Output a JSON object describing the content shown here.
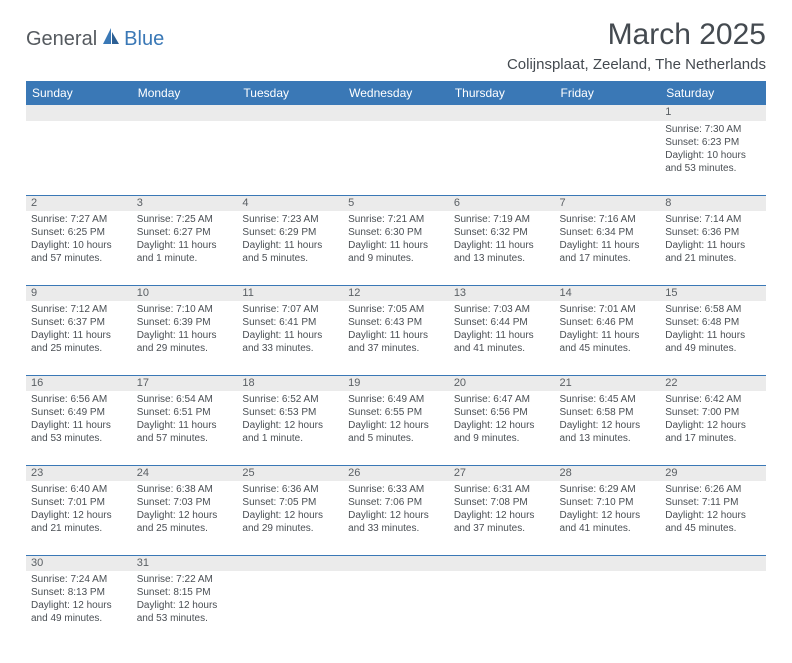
{
  "logo": {
    "general": "General",
    "blue": "Blue"
  },
  "title": "March 2025",
  "location": "Colijnsplaat, Zeeland, The Netherlands",
  "colors": {
    "header_bg": "#3a78b6",
    "header_text": "#ffffff",
    "daynum_bg": "#ebebeb",
    "text": "#4a4f54"
  },
  "weekdays": [
    "Sunday",
    "Monday",
    "Tuesday",
    "Wednesday",
    "Thursday",
    "Friday",
    "Saturday"
  ],
  "weeks": [
    [
      null,
      null,
      null,
      null,
      null,
      null,
      {
        "n": "1",
        "sr": "Sunrise: 7:30 AM",
        "ss": "Sunset: 6:23 PM",
        "dl1": "Daylight: 10 hours",
        "dl2": "and 53 minutes."
      }
    ],
    [
      {
        "n": "2",
        "sr": "Sunrise: 7:27 AM",
        "ss": "Sunset: 6:25 PM",
        "dl1": "Daylight: 10 hours",
        "dl2": "and 57 minutes."
      },
      {
        "n": "3",
        "sr": "Sunrise: 7:25 AM",
        "ss": "Sunset: 6:27 PM",
        "dl1": "Daylight: 11 hours",
        "dl2": "and 1 minute."
      },
      {
        "n": "4",
        "sr": "Sunrise: 7:23 AM",
        "ss": "Sunset: 6:29 PM",
        "dl1": "Daylight: 11 hours",
        "dl2": "and 5 minutes."
      },
      {
        "n": "5",
        "sr": "Sunrise: 7:21 AM",
        "ss": "Sunset: 6:30 PM",
        "dl1": "Daylight: 11 hours",
        "dl2": "and 9 minutes."
      },
      {
        "n": "6",
        "sr": "Sunrise: 7:19 AM",
        "ss": "Sunset: 6:32 PM",
        "dl1": "Daylight: 11 hours",
        "dl2": "and 13 minutes."
      },
      {
        "n": "7",
        "sr": "Sunrise: 7:16 AM",
        "ss": "Sunset: 6:34 PM",
        "dl1": "Daylight: 11 hours",
        "dl2": "and 17 minutes."
      },
      {
        "n": "8",
        "sr": "Sunrise: 7:14 AM",
        "ss": "Sunset: 6:36 PM",
        "dl1": "Daylight: 11 hours",
        "dl2": "and 21 minutes."
      }
    ],
    [
      {
        "n": "9",
        "sr": "Sunrise: 7:12 AM",
        "ss": "Sunset: 6:37 PM",
        "dl1": "Daylight: 11 hours",
        "dl2": "and 25 minutes."
      },
      {
        "n": "10",
        "sr": "Sunrise: 7:10 AM",
        "ss": "Sunset: 6:39 PM",
        "dl1": "Daylight: 11 hours",
        "dl2": "and 29 minutes."
      },
      {
        "n": "11",
        "sr": "Sunrise: 7:07 AM",
        "ss": "Sunset: 6:41 PM",
        "dl1": "Daylight: 11 hours",
        "dl2": "and 33 minutes."
      },
      {
        "n": "12",
        "sr": "Sunrise: 7:05 AM",
        "ss": "Sunset: 6:43 PM",
        "dl1": "Daylight: 11 hours",
        "dl2": "and 37 minutes."
      },
      {
        "n": "13",
        "sr": "Sunrise: 7:03 AM",
        "ss": "Sunset: 6:44 PM",
        "dl1": "Daylight: 11 hours",
        "dl2": "and 41 minutes."
      },
      {
        "n": "14",
        "sr": "Sunrise: 7:01 AM",
        "ss": "Sunset: 6:46 PM",
        "dl1": "Daylight: 11 hours",
        "dl2": "and 45 minutes."
      },
      {
        "n": "15",
        "sr": "Sunrise: 6:58 AM",
        "ss": "Sunset: 6:48 PM",
        "dl1": "Daylight: 11 hours",
        "dl2": "and 49 minutes."
      }
    ],
    [
      {
        "n": "16",
        "sr": "Sunrise: 6:56 AM",
        "ss": "Sunset: 6:49 PM",
        "dl1": "Daylight: 11 hours",
        "dl2": "and 53 minutes."
      },
      {
        "n": "17",
        "sr": "Sunrise: 6:54 AM",
        "ss": "Sunset: 6:51 PM",
        "dl1": "Daylight: 11 hours",
        "dl2": "and 57 minutes."
      },
      {
        "n": "18",
        "sr": "Sunrise: 6:52 AM",
        "ss": "Sunset: 6:53 PM",
        "dl1": "Daylight: 12 hours",
        "dl2": "and 1 minute."
      },
      {
        "n": "19",
        "sr": "Sunrise: 6:49 AM",
        "ss": "Sunset: 6:55 PM",
        "dl1": "Daylight: 12 hours",
        "dl2": "and 5 minutes."
      },
      {
        "n": "20",
        "sr": "Sunrise: 6:47 AM",
        "ss": "Sunset: 6:56 PM",
        "dl1": "Daylight: 12 hours",
        "dl2": "and 9 minutes."
      },
      {
        "n": "21",
        "sr": "Sunrise: 6:45 AM",
        "ss": "Sunset: 6:58 PM",
        "dl1": "Daylight: 12 hours",
        "dl2": "and 13 minutes."
      },
      {
        "n": "22",
        "sr": "Sunrise: 6:42 AM",
        "ss": "Sunset: 7:00 PM",
        "dl1": "Daylight: 12 hours",
        "dl2": "and 17 minutes."
      }
    ],
    [
      {
        "n": "23",
        "sr": "Sunrise: 6:40 AM",
        "ss": "Sunset: 7:01 PM",
        "dl1": "Daylight: 12 hours",
        "dl2": "and 21 minutes."
      },
      {
        "n": "24",
        "sr": "Sunrise: 6:38 AM",
        "ss": "Sunset: 7:03 PM",
        "dl1": "Daylight: 12 hours",
        "dl2": "and 25 minutes."
      },
      {
        "n": "25",
        "sr": "Sunrise: 6:36 AM",
        "ss": "Sunset: 7:05 PM",
        "dl1": "Daylight: 12 hours",
        "dl2": "and 29 minutes."
      },
      {
        "n": "26",
        "sr": "Sunrise: 6:33 AM",
        "ss": "Sunset: 7:06 PM",
        "dl1": "Daylight: 12 hours",
        "dl2": "and 33 minutes."
      },
      {
        "n": "27",
        "sr": "Sunrise: 6:31 AM",
        "ss": "Sunset: 7:08 PM",
        "dl1": "Daylight: 12 hours",
        "dl2": "and 37 minutes."
      },
      {
        "n": "28",
        "sr": "Sunrise: 6:29 AM",
        "ss": "Sunset: 7:10 PM",
        "dl1": "Daylight: 12 hours",
        "dl2": "and 41 minutes."
      },
      {
        "n": "29",
        "sr": "Sunrise: 6:26 AM",
        "ss": "Sunset: 7:11 PM",
        "dl1": "Daylight: 12 hours",
        "dl2": "and 45 minutes."
      }
    ],
    [
      {
        "n": "30",
        "sr": "Sunrise: 7:24 AM",
        "ss": "Sunset: 8:13 PM",
        "dl1": "Daylight: 12 hours",
        "dl2": "and 49 minutes."
      },
      {
        "n": "31",
        "sr": "Sunrise: 7:22 AM",
        "ss": "Sunset: 8:15 PM",
        "dl1": "Daylight: 12 hours",
        "dl2": "and 53 minutes."
      },
      null,
      null,
      null,
      null,
      null
    ]
  ]
}
